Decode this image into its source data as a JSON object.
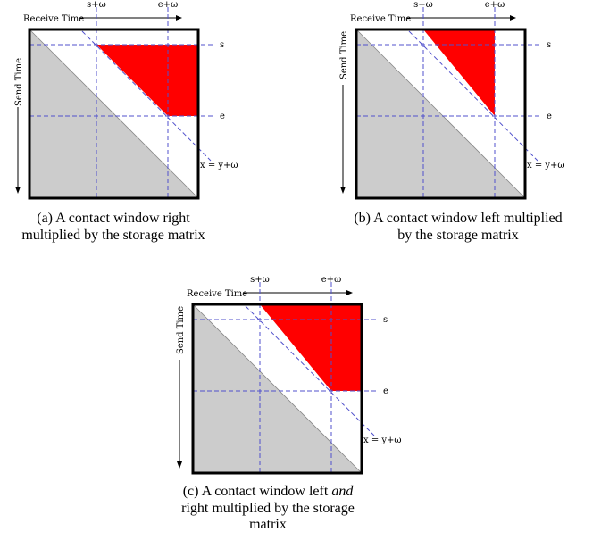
{
  "labels": {
    "receive_time": "Receive Time",
    "send_time": "Send Time",
    "s_plus_omega": "s+ω",
    "e_plus_omega": "e+ω",
    "s": "s",
    "e": "e",
    "diagonal": "x = y+ω"
  },
  "colors": {
    "highlight": "#ff0000",
    "shade": "#cccccc",
    "guide": "#5050cc"
  },
  "captions": {
    "a": "(a) A contact window right multiplied by the storage matrix",
    "b": "(b) A contact window left multiplied by the storage matrix",
    "c_before": "(c) A contact window left ",
    "c_emph": "and",
    "c_after": " right multiplied by the storage matrix"
  }
}
